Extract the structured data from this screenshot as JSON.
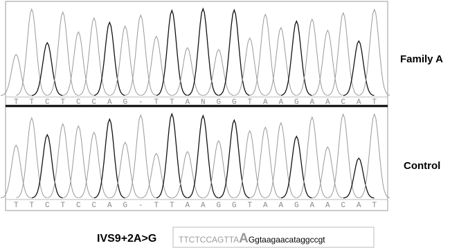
{
  "panels": [
    {
      "label": "Family A",
      "bases": [
        "T",
        "T",
        "C",
        "T",
        "C",
        "C",
        "A",
        "G",
        "-",
        "T",
        "T",
        "A",
        "N",
        "G",
        "G",
        "T",
        "A",
        "A",
        "G",
        "A",
        "A",
        "C",
        "A",
        "T"
      ]
    },
    {
      "label": "Control",
      "bases": [
        "T",
        "T",
        "C",
        "T",
        "C",
        "C",
        "A",
        "G",
        "-",
        "T",
        "T",
        "A",
        "A",
        "G",
        "G",
        "T",
        "A",
        "A",
        "G",
        "A",
        "A",
        "C",
        "A",
        "T"
      ]
    }
  ],
  "mutation": {
    "label": "IVS9+2A>G",
    "sequence_before": "TTCTCCAGTTA",
    "sequence_highlight": "A",
    "sequence_after": "Ggtaagaacataggccgt"
  }
}
